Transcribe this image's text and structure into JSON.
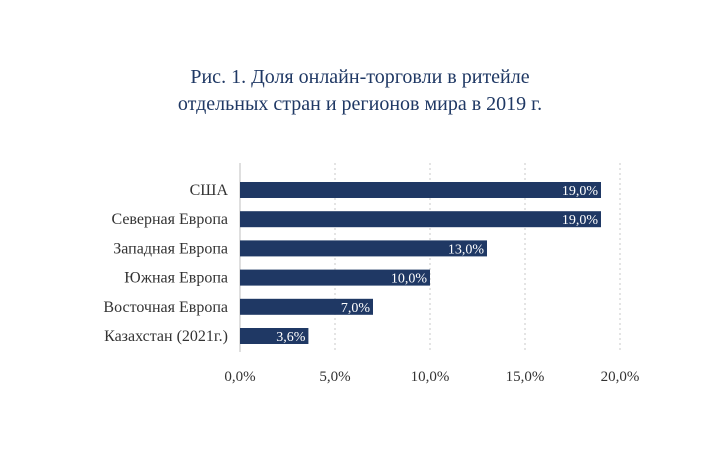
{
  "chart_data": {
    "type": "bar",
    "orientation": "horizontal",
    "title_lines": [
      "Рис. 1. Доля онлайн-торговли в ритейле",
      "отдельных стран и регионов мира в 2019 г."
    ],
    "categories": [
      "США",
      "Северная Европа",
      "Западная Европа",
      "Южная Европа",
      "Восточная Европа",
      "Казахстан (2021г.)"
    ],
    "values": [
      19.0,
      19.0,
      13.0,
      10.0,
      7.0,
      3.6
    ],
    "data_labels": [
      "19,0%",
      "19,0%",
      "13,0%",
      "10,0%",
      "7,0%",
      "3,6%"
    ],
    "x_ticks": [
      "0,0%",
      "5,0%",
      "10,0%",
      "15,0%",
      "20,0%"
    ],
    "xlim": [
      0,
      20
    ],
    "grid": true,
    "bar_color": "#1f3864",
    "title_color": "#1f3864"
  }
}
